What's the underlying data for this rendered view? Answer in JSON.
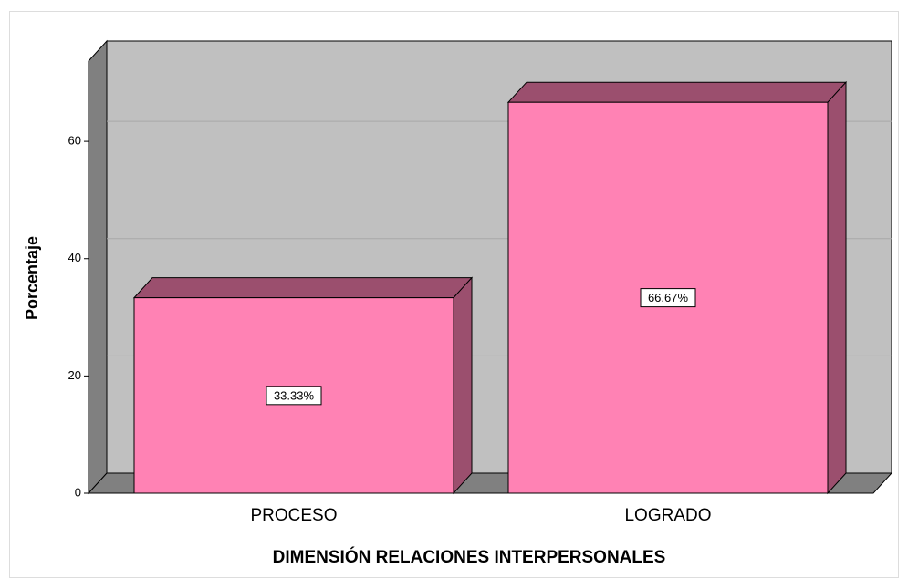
{
  "chart_data": {
    "type": "bar",
    "categories": [
      "PROCESO",
      "LOGRADO"
    ],
    "values": [
      33.33,
      66.67
    ],
    "value_labels": [
      "33.33%",
      "66.67%"
    ],
    "color": "#ff82b4",
    "ylim": [
      0,
      73.7
    ],
    "yticks": [
      0,
      20,
      40,
      60
    ],
    "grid": true,
    "ylabel": "Porcentaje",
    "xlabel": "DIMENSIÓN RELACIONES INTERPERSONALES"
  }
}
